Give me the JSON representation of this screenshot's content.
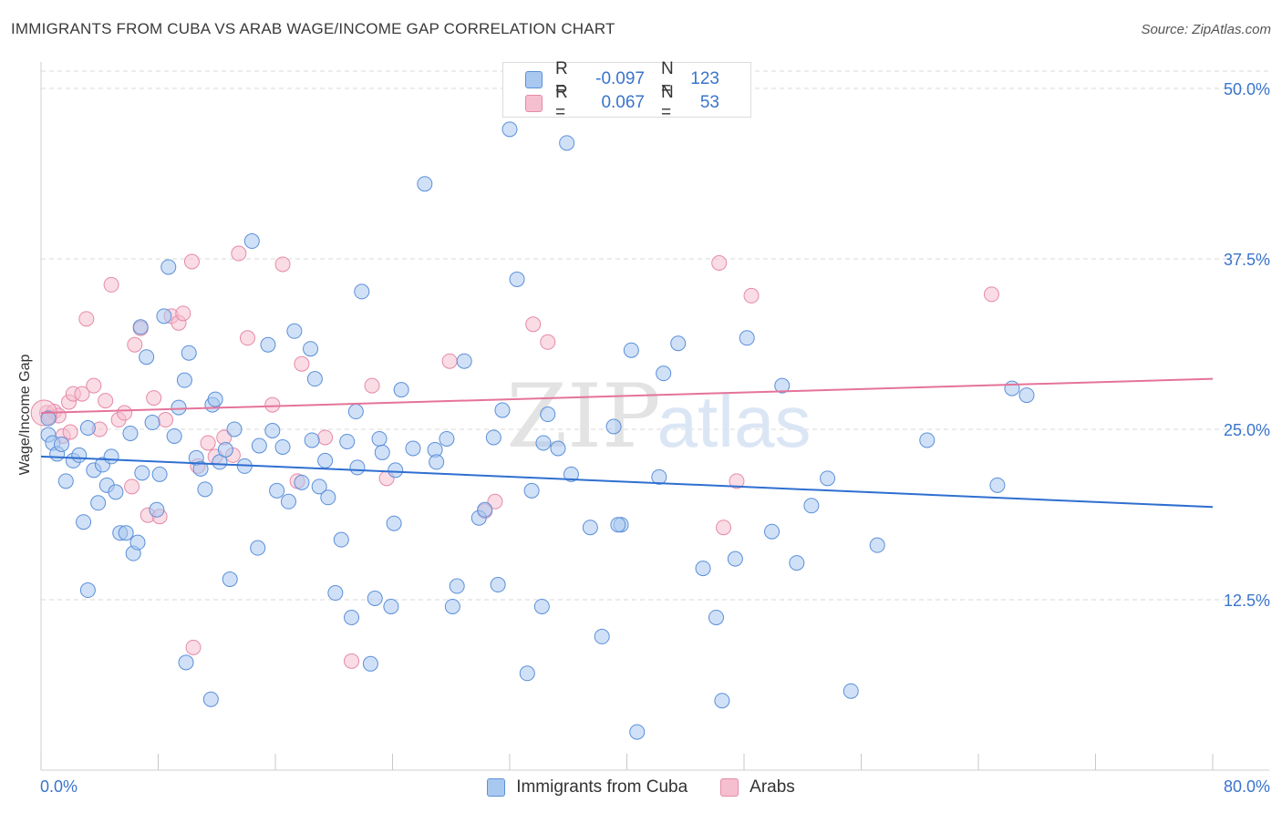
{
  "title": "IMMIGRANTS FROM CUBA VS ARAB WAGE/INCOME GAP CORRELATION CHART",
  "source": "Source: ZipAtlas.com",
  "colors": {
    "blue_fill": "#a9c8f0",
    "blue_stroke": "#5b8fd9",
    "blue_line": "#2f6fd0",
    "pink_fill": "#f6bfd0",
    "pink_stroke": "#e58aa8",
    "pink_line": "#e5739a",
    "tick_label": "#3a74cc",
    "grid": "#d9d9d9"
  },
  "legend_top": {
    "rows": [
      {
        "r_label": "R =",
        "r_value": "-0.097",
        "n_label": "N =",
        "n_value": "123"
      },
      {
        "r_label": "R =",
        "r_value": "0.067",
        "n_label": "N =",
        "n_value": "53"
      }
    ]
  },
  "watermark": {
    "zip": "ZIP",
    "atlas": "atlas"
  },
  "chart_data": {
    "type": "scatter",
    "xlabel": "",
    "ylabel": "Wage/Income Gap",
    "xlim": [
      0,
      80
    ],
    "ylim": [
      0,
      50
    ],
    "x_tick_labels": [
      "0.0%",
      "80.0%"
    ],
    "y_ticks": [
      12.5,
      25.0,
      37.5,
      50.0
    ],
    "y_tick_labels": [
      "12.5%",
      "25.0%",
      "37.5%",
      "50.0%"
    ],
    "grid": "horizontal dashed",
    "legend_position": "bottom-center",
    "series": [
      {
        "name": "Immigrants from Cuba",
        "color": "#a9c8f0",
        "trend": {
          "x": [
            0,
            80
          ],
          "y": [
            23.0,
            19.3
          ]
        },
        "points": [
          [
            0.5,
            25.8
          ],
          [
            0.5,
            24.6
          ],
          [
            0.8,
            24.0
          ],
          [
            1.1,
            23.2
          ],
          [
            1.4,
            23.9
          ],
          [
            1.7,
            21.2
          ],
          [
            2.2,
            22.7
          ],
          [
            2.6,
            23.1
          ],
          [
            2.9,
            18.2
          ],
          [
            3.2,
            25.1
          ],
          [
            3.6,
            22.0
          ],
          [
            3.9,
            19.6
          ],
          [
            4.2,
            22.4
          ],
          [
            4.5,
            20.9
          ],
          [
            4.8,
            23.0
          ],
          [
            5.1,
            20.4
          ],
          [
            5.4,
            17.4
          ],
          [
            5.8,
            17.4
          ],
          [
            6.1,
            24.7
          ],
          [
            6.3,
            15.9
          ],
          [
            6.6,
            16.7
          ],
          [
            6.9,
            21.8
          ],
          [
            7.2,
            30.3
          ],
          [
            7.6,
            25.5
          ],
          [
            7.9,
            19.1
          ],
          [
            8.1,
            21.7
          ],
          [
            8.7,
            36.9
          ],
          [
            8.4,
            33.3
          ],
          [
            9.1,
            24.5
          ],
          [
            9.4,
            26.6
          ],
          [
            9.8,
            28.6
          ],
          [
            10.1,
            30.6
          ],
          [
            10.6,
            22.9
          ],
          [
            10.9,
            22.1
          ],
          [
            11.2,
            20.6
          ],
          [
            11.7,
            26.8
          ],
          [
            11.9,
            27.2
          ],
          [
            12.2,
            22.6
          ],
          [
            12.6,
            23.5
          ],
          [
            13.2,
            25.0
          ],
          [
            13.9,
            22.3
          ],
          [
            14.4,
            38.8
          ],
          [
            14.9,
            23.8
          ],
          [
            15.5,
            31.2
          ],
          [
            15.8,
            24.9
          ],
          [
            16.1,
            20.5
          ],
          [
            16.5,
            23.7
          ],
          [
            16.9,
            19.7
          ],
          [
            17.3,
            32.2
          ],
          [
            17.8,
            21.1
          ],
          [
            18.4,
            30.9
          ],
          [
            18.7,
            28.7
          ],
          [
            19.0,
            20.8
          ],
          [
            19.4,
            22.7
          ],
          [
            19.6,
            20.0
          ],
          [
            20.1,
            13.0
          ],
          [
            20.5,
            16.9
          ],
          [
            20.9,
            24.1
          ],
          [
            21.2,
            11.2
          ],
          [
            21.6,
            22.2
          ],
          [
            21.9,
            35.1
          ],
          [
            22.5,
            7.8
          ],
          [
            22.8,
            12.6
          ],
          [
            23.1,
            24.3
          ],
          [
            23.3,
            23.3
          ],
          [
            23.9,
            12.0
          ],
          [
            24.2,
            22.0
          ],
          [
            24.1,
            18.1
          ],
          [
            24.6,
            27.9
          ],
          [
            25.4,
            23.6
          ],
          [
            26.2,
            43.0
          ],
          [
            26.9,
            23.5
          ],
          [
            27.7,
            24.3
          ],
          [
            28.1,
            12.0
          ],
          [
            28.9,
            30.0
          ],
          [
            28.4,
            13.5
          ],
          [
            29.9,
            18.5
          ],
          [
            30.3,
            19.1
          ],
          [
            30.9,
            24.4
          ],
          [
            31.2,
            13.6
          ],
          [
            31.5,
            26.4
          ],
          [
            32.0,
            47.0
          ],
          [
            32.5,
            36.0
          ],
          [
            33.2,
            7.1
          ],
          [
            33.5,
            20.5
          ],
          [
            34.2,
            12.0
          ],
          [
            34.3,
            24.0
          ],
          [
            35.3,
            23.6
          ],
          [
            35.9,
            46.0
          ],
          [
            36.2,
            21.7
          ],
          [
            37.5,
            17.8
          ],
          [
            38.3,
            9.8
          ],
          [
            39.1,
            25.2
          ],
          [
            39.6,
            18.0
          ],
          [
            39.4,
            18.0
          ],
          [
            40.3,
            30.8
          ],
          [
            40.7,
            2.8
          ],
          [
            42.2,
            21.5
          ],
          [
            42.5,
            29.1
          ],
          [
            43.5,
            31.3
          ],
          [
            45.2,
            14.8
          ],
          [
            46.1,
            11.2
          ],
          [
            46.5,
            5.1
          ],
          [
            47.4,
            15.5
          ],
          [
            48.2,
            31.7
          ],
          [
            49.9,
            17.5
          ],
          [
            50.6,
            28.2
          ],
          [
            51.6,
            15.2
          ],
          [
            52.6,
            19.4
          ],
          [
            53.7,
            21.4
          ],
          [
            55.3,
            5.8
          ],
          [
            57.1,
            16.5
          ],
          [
            60.5,
            24.2
          ],
          [
            65.3,
            20.9
          ],
          [
            66.3,
            28.0
          ],
          [
            67.3,
            27.5
          ],
          [
            18.5,
            24.2
          ],
          [
            3.2,
            13.2
          ],
          [
            6.8,
            32.5
          ],
          [
            12.9,
            14.0
          ],
          [
            9.9,
            7.9
          ],
          [
            14.8,
            16.3
          ],
          [
            21.5,
            26.3
          ],
          [
            34.6,
            26.1
          ],
          [
            27.0,
            22.6
          ],
          [
            11.6,
            5.2
          ]
        ]
      },
      {
        "name": "Arabs",
        "color": "#f6bfd0",
        "trend": {
          "x": [
            0,
            80
          ],
          "y": [
            26.2,
            28.7
          ]
        },
        "points": [
          [
            0.4,
            26.2
          ],
          [
            0.6,
            25.9
          ],
          [
            0.9,
            26.3
          ],
          [
            1.2,
            26.0
          ],
          [
            1.5,
            24.5
          ],
          [
            1.9,
            27.0
          ],
          [
            2.2,
            27.6
          ],
          [
            2.8,
            27.6
          ],
          [
            3.1,
            33.1
          ],
          [
            3.6,
            28.2
          ],
          [
            4.0,
            25.0
          ],
          [
            4.4,
            27.1
          ],
          [
            4.8,
            35.6
          ],
          [
            5.3,
            25.7
          ],
          [
            5.7,
            26.2
          ],
          [
            6.2,
            20.8
          ],
          [
            6.4,
            31.2
          ],
          [
            6.8,
            32.4
          ],
          [
            7.3,
            18.7
          ],
          [
            7.7,
            27.3
          ],
          [
            8.1,
            18.6
          ],
          [
            8.5,
            25.7
          ],
          [
            8.9,
            33.3
          ],
          [
            9.4,
            32.8
          ],
          [
            9.7,
            33.5
          ],
          [
            10.3,
            37.3
          ],
          [
            10.7,
            22.3
          ],
          [
            11.4,
            24.0
          ],
          [
            11.9,
            23.0
          ],
          [
            12.5,
            24.4
          ],
          [
            13.5,
            37.9
          ],
          [
            14.1,
            31.7
          ],
          [
            15.8,
            26.8
          ],
          [
            16.5,
            37.1
          ],
          [
            17.5,
            21.2
          ],
          [
            17.8,
            29.8
          ],
          [
            19.4,
            24.4
          ],
          [
            21.2,
            8.0
          ],
          [
            22.6,
            28.2
          ],
          [
            23.6,
            21.4
          ],
          [
            27.9,
            30.0
          ],
          [
            30.3,
            19.0
          ],
          [
            31.0,
            19.7
          ],
          [
            33.6,
            32.7
          ],
          [
            34.6,
            31.4
          ],
          [
            46.3,
            37.2
          ],
          [
            46.6,
            17.8
          ],
          [
            47.5,
            21.2
          ],
          [
            48.5,
            34.8
          ],
          [
            64.9,
            34.9
          ],
          [
            10.4,
            9.0
          ],
          [
            2.0,
            24.8
          ],
          [
            13.1,
            23.1
          ]
        ]
      }
    ]
  }
}
